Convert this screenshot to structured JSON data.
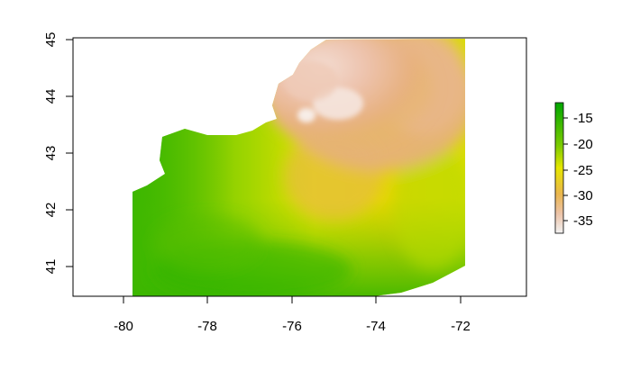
{
  "chart_data": {
    "type": "heatmap",
    "title": "",
    "xlabel": "",
    "ylabel": "",
    "xlim": [
      -81.2,
      -70.4
    ],
    "ylim": [
      40.45,
      45.0
    ],
    "x_ticks": [
      -80,
      -78,
      -76,
      -74,
      -72
    ],
    "x_tick_labels": [
      "-80",
      "-78",
      "-76",
      "-74",
      "-72"
    ],
    "y_ticks": [
      41,
      42,
      43,
      44,
      45
    ],
    "y_tick_labels": [
      "41",
      "42",
      "43",
      "44",
      "45"
    ],
    "legend": {
      "position": "right",
      "range": [
        -38,
        -12
      ],
      "ticks": [
        -15,
        -20,
        -25,
        -30,
        -35
      ],
      "tick_labels": [
        "-15",
        "-20",
        "-25",
        "-30",
        "-35"
      ]
    },
    "colors": {
      "high": "#00A600",
      "mid": "#E6E600",
      "low_mid": "#EAB64E",
      "low": "#F2F2F2"
    }
  }
}
